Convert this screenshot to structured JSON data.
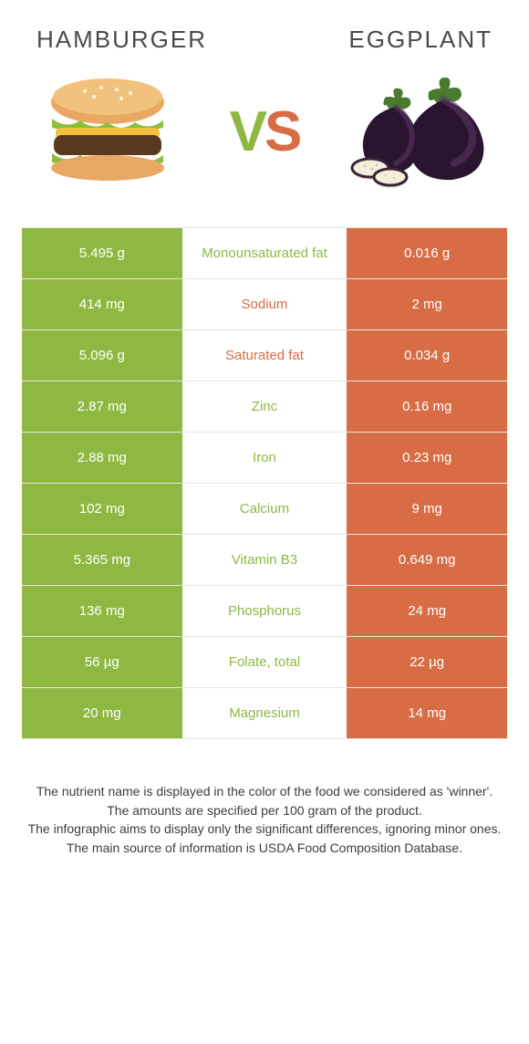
{
  "header": {
    "left_title": "Hamburger",
    "right_title": "Eggplant",
    "vs_text": "VS",
    "vs_left_color": "#8fb842",
    "vs_right_color": "#d86c44"
  },
  "colors": {
    "left_bg": "#8fb842",
    "right_bg": "#d86c44",
    "left_text": "#8fb842",
    "right_text": "#d86c44",
    "cell_text": "#ffffff",
    "border": "#e6e6e6"
  },
  "rows": [
    {
      "left": "5.495 g",
      "mid": "Monounsaturated fat",
      "right": "0.016 g",
      "winner": "left"
    },
    {
      "left": "414 mg",
      "mid": "Sodium",
      "right": "2 mg",
      "winner": "right"
    },
    {
      "left": "5.096 g",
      "mid": "Saturated fat",
      "right": "0.034 g",
      "winner": "right"
    },
    {
      "left": "2.87 mg",
      "mid": "Zinc",
      "right": "0.16 mg",
      "winner": "left"
    },
    {
      "left": "2.88 mg",
      "mid": "Iron",
      "right": "0.23 mg",
      "winner": "left"
    },
    {
      "left": "102 mg",
      "mid": "Calcium",
      "right": "9 mg",
      "winner": "left"
    },
    {
      "left": "5.365 mg",
      "mid": "Vitamin B3",
      "right": "0.649 mg",
      "winner": "left"
    },
    {
      "left": "136 mg",
      "mid": "Phosphorus",
      "right": "24 mg",
      "winner": "left"
    },
    {
      "left": "56 µg",
      "mid": "Folate, total",
      "right": "22 µg",
      "winner": "left"
    },
    {
      "left": "20 mg",
      "mid": "Magnesium",
      "right": "14 mg",
      "winner": "left"
    }
  ],
  "footnote": {
    "line1": "The nutrient name is displayed in the color of the food we considered as 'winner'.",
    "line2": "The amounts are specified per 100 gram of the product.",
    "line3": "The infographic aims to display only the significant differences, ignoring minor ones.",
    "line4": "The main source of information is USDA Food Composition Database."
  }
}
